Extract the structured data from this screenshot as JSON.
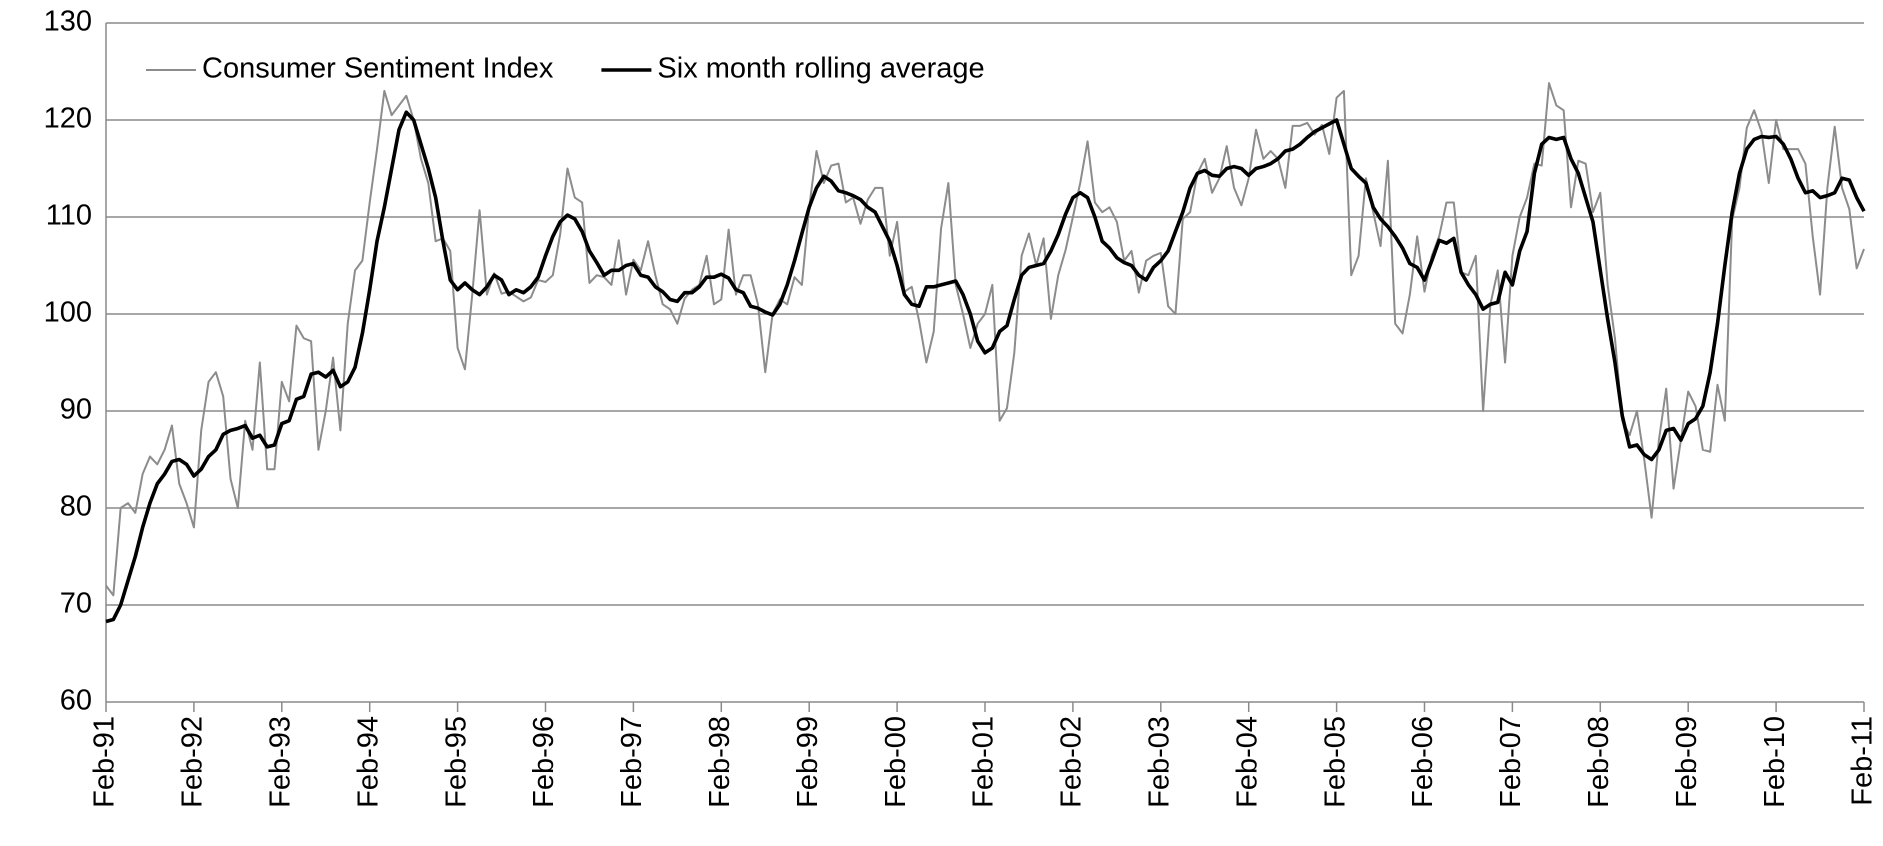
{
  "chart_data": {
    "type": "line",
    "categories": [
      "Feb-91",
      null,
      null,
      null,
      null,
      null,
      null,
      null,
      null,
      null,
      null,
      null,
      "Feb-92",
      null,
      null,
      null,
      null,
      null,
      null,
      null,
      null,
      null,
      null,
      null,
      "Feb-93",
      null,
      null,
      null,
      null,
      null,
      null,
      null,
      null,
      null,
      null,
      null,
      "Feb-94",
      null,
      null,
      null,
      null,
      null,
      null,
      null,
      null,
      null,
      null,
      null,
      "Feb-95",
      null,
      null,
      null,
      null,
      null,
      null,
      null,
      null,
      null,
      null,
      null,
      "Feb-96",
      null,
      null,
      null,
      null,
      null,
      null,
      null,
      null,
      null,
      null,
      null,
      "Feb-97",
      null,
      null,
      null,
      null,
      null,
      null,
      null,
      null,
      null,
      null,
      null,
      "Feb-98",
      null,
      null,
      null,
      null,
      null,
      null,
      null,
      null,
      null,
      null,
      null,
      "Feb-99",
      null,
      null,
      null,
      null,
      null,
      null,
      null,
      null,
      null,
      null,
      null,
      "Feb-00",
      null,
      null,
      null,
      null,
      null,
      null,
      null,
      null,
      null,
      null,
      null,
      "Feb-01",
      null,
      null,
      null,
      null,
      null,
      null,
      null,
      null,
      null,
      null,
      null,
      "Feb-02",
      null,
      null,
      null,
      null,
      null,
      null,
      null,
      null,
      null,
      null,
      null,
      "Feb-03",
      null,
      null,
      null,
      null,
      null,
      null,
      null,
      null,
      null,
      null,
      null,
      "Feb-04",
      null,
      null,
      null,
      null,
      null,
      null,
      null,
      null,
      null,
      null,
      null,
      "Feb-05",
      null,
      null,
      null,
      null,
      null,
      null,
      null,
      null,
      null,
      null,
      null,
      "Feb-06",
      null,
      null,
      null,
      null,
      null,
      null,
      null,
      null,
      null,
      null,
      null,
      "Feb-07",
      null,
      null,
      null,
      null,
      null,
      null,
      null,
      null,
      null,
      null,
      null,
      "Feb-08",
      null,
      null,
      null,
      null,
      null,
      null,
      null,
      null,
      null,
      null,
      null,
      "Feb-09",
      null,
      null,
      null,
      null,
      null,
      null,
      null,
      null,
      null,
      null,
      null,
      "Feb-10",
      null,
      null,
      null,
      null,
      null,
      null,
      null,
      null,
      null,
      null,
      null,
      "Feb-11"
    ],
    "series": [
      {
        "name": "Consumer Sentiment Index",
        "color": "#8c8c8c",
        "values": [
          72,
          71,
          80,
          80.5,
          79.5,
          83.5,
          85.3,
          84.5,
          86,
          88.5,
          82.5,
          80.5,
          78,
          88,
          93,
          94,
          91.5,
          83,
          80,
          89,
          86,
          95,
          84,
          84,
          93,
          91,
          98.8,
          97.5,
          97.2,
          86,
          90,
          95.5,
          88,
          99,
          104.5,
          105.5,
          111.5,
          117,
          123,
          120.5,
          121.5,
          122.5,
          120,
          116,
          113.5,
          107.5,
          107.8,
          106.5,
          96.5,
          94.3,
          102,
          110.7,
          102,
          104.2,
          102.1,
          102.3,
          101.8,
          101.3,
          101.7,
          103.5,
          103.3,
          104,
          108.2,
          115,
          112,
          111.5,
          103.2,
          104,
          103.8,
          103,
          107.6,
          102,
          105.6,
          104.5,
          107.5,
          104,
          101,
          100.5,
          99,
          101.6,
          102.5,
          103,
          106,
          101,
          101.5,
          108.7,
          102,
          104,
          104,
          101,
          94,
          100,
          101.5,
          101,
          103.8,
          103,
          111,
          116.8,
          113.5,
          115.3,
          115.5,
          111.5,
          112,
          109.3,
          111.8,
          113,
          113,
          106,
          109.5,
          102.3,
          102.8,
          99.3,
          95,
          98.2,
          108.8,
          113.5,
          103,
          100,
          96.5,
          99,
          100,
          103,
          89,
          90.3,
          96,
          106,
          108.3,
          105,
          107.8,
          99.5,
          104,
          106.6,
          110,
          113.5,
          117.8,
          111.5,
          110.5,
          111,
          109.5,
          105.5,
          106.5,
          102.2,
          105.5,
          106,
          106.3,
          100.8,
          100,
          109.8,
          110.5,
          114.5,
          116,
          112.5,
          114,
          117.3,
          113,
          111.2,
          114,
          119,
          116,
          116.8,
          116,
          113,
          119.4,
          119.4,
          119.7,
          118.5,
          119.5,
          116.5,
          122.3,
          123,
          104,
          106,
          114,
          110.5,
          107,
          115.8,
          99,
          98,
          102,
          108,
          102.3,
          106,
          108,
          111.5,
          111.5,
          104.3,
          104,
          106,
          90,
          101,
          104.5,
          95,
          106,
          110,
          112,
          115.5,
          115.3,
          123.8,
          121.5,
          121,
          111,
          115.8,
          115.5,
          110.5,
          112.5,
          103,
          97.5,
          89,
          87.5,
          90,
          85,
          79,
          87,
          92.3,
          82,
          87,
          92,
          90.5,
          86,
          85.8,
          92.7,
          89,
          109.7,
          113,
          119.2,
          121,
          118.8,
          113.5,
          120,
          117,
          117,
          117,
          115.5,
          108,
          102,
          113,
          119.3,
          113,
          110.8,
          104.7,
          106.7
        ]
      },
      {
        "name": "Six month rolling average",
        "color": "#000000",
        "values": [
          68.3,
          68.5,
          70,
          72.5,
          75,
          78,
          80.5,
          82.5,
          83.5,
          84.8,
          85,
          84.5,
          83.3,
          84,
          85.3,
          86,
          87.6,
          88,
          88.2,
          88.5,
          87.2,
          87.5,
          86.3,
          86.5,
          88.7,
          89,
          91.2,
          91.5,
          93.8,
          94,
          93.5,
          94.2,
          92.5,
          93,
          94.5,
          98,
          102.5,
          107.5,
          111,
          115,
          119,
          120.8,
          120,
          117.5,
          115,
          112,
          107.5,
          103.5,
          102.5,
          103.2,
          102.5,
          102,
          102.8,
          104,
          103.5,
          102,
          102.5,
          102.2,
          102.8,
          103.8,
          106,
          108,
          109.5,
          110.2,
          109.8,
          108.5,
          106.5,
          105.3,
          104,
          104.5,
          104.5,
          105,
          105.2,
          104,
          103.8,
          102.8,
          102.3,
          101.5,
          101.3,
          102.2,
          102.2,
          102.8,
          103.8,
          103.8,
          104.1,
          103.7,
          102.5,
          102.2,
          100.8,
          100.6,
          100.2,
          99.9,
          101,
          103,
          105.5,
          108.3,
          111,
          113,
          114.2,
          113.7,
          112.7,
          112.5,
          112.2,
          111.8,
          111,
          110.5,
          109,
          107.5,
          105,
          102,
          101,
          100.8,
          102.8,
          102.8,
          103,
          103.2,
          103.4,
          102,
          100,
          97.2,
          96,
          96.5,
          98.2,
          98.8,
          101.5,
          104,
          104.8,
          105,
          105.2,
          106.5,
          108.2,
          110.3,
          112,
          112.5,
          112,
          110,
          107.5,
          106.8,
          105.8,
          105.3,
          105,
          104,
          103.5,
          104.8,
          105.5,
          106.5,
          108.5,
          110.5,
          113,
          114.5,
          114.8,
          114.3,
          114.2,
          115,
          115.2,
          115,
          114.3,
          115,
          115.2,
          115.5,
          116,
          116.8,
          117,
          117.5,
          118.2,
          118.8,
          119.2,
          119.6,
          120,
          117.5,
          115,
          114.2,
          113.5,
          111,
          109.8,
          109,
          108,
          106.8,
          105.2,
          104.8,
          103.5,
          105.5,
          107.6,
          107.3,
          107.8,
          104.3,
          103,
          102,
          100.5,
          101,
          101.2,
          104.3,
          103,
          106.5,
          108.5,
          114.5,
          117.5,
          118.2,
          118,
          118.2,
          116,
          114.5,
          112,
          109.5,
          104.5,
          99.5,
          95,
          89.5,
          86.3,
          86.5,
          85.5,
          85,
          86,
          88,
          88.2,
          87,
          88.7,
          89.2,
          90.5,
          94,
          99,
          105,
          110.5,
          114.5,
          117,
          118,
          118.3,
          118.2,
          118.3,
          117.5,
          116,
          114,
          112.5,
          112.7,
          112,
          112.2,
          112.5,
          114,
          113.8,
          112,
          110.6
        ]
      }
    ],
    "ylim": [
      60,
      130
    ],
    "yticks": [
      60,
      70,
      80,
      90,
      100,
      110,
      120,
      130
    ],
    "grid": true,
    "legend": "top-left"
  }
}
